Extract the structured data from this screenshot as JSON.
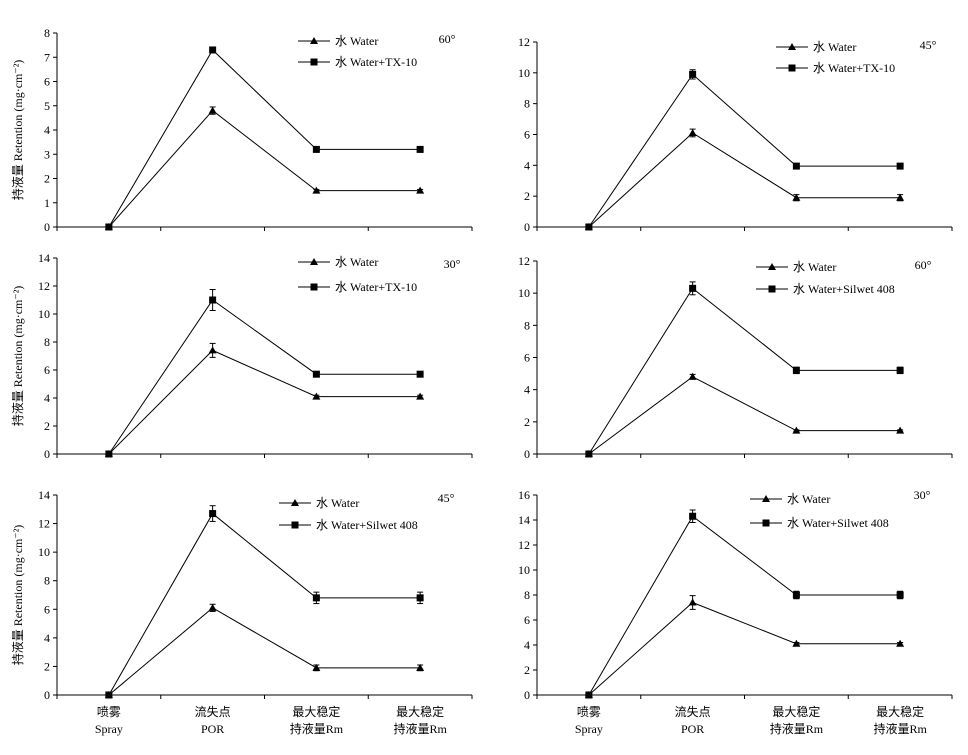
{
  "figure": {
    "ylabel": "持液量 Retention (mg·cm⁻²)",
    "categories_cn": [
      "喷雾",
      "流失点",
      "最大稳定",
      "最大稳定"
    ],
    "categories_en": [
      "Spray",
      "POR",
      "持液量Rm",
      "持液量Rm"
    ]
  },
  "chart_data": [
    {
      "type": "line",
      "angle_label": "60°",
      "ylim": [
        0,
        8
      ],
      "yticks": [
        0,
        1,
        2,
        3,
        4,
        5,
        6,
        7,
        8
      ],
      "grid": false,
      "legend_position": "top-right",
      "series": [
        {
          "name": "水 Water",
          "marker": "triangle",
          "values": [
            0,
            4.8,
            1.5,
            1.5
          ],
          "errors": [
            0,
            0.15,
            0.05,
            0.05
          ]
        },
        {
          "name": "水 Water+TX-10",
          "marker": "square",
          "values": [
            0,
            7.3,
            3.2,
            3.2
          ],
          "errors": [
            0,
            0.1,
            0.1,
            0.1
          ]
        }
      ]
    },
    {
      "type": "line",
      "angle_label": "45°",
      "ylim": [
        0,
        12
      ],
      "yticks": [
        0,
        2,
        4,
        6,
        8,
        10,
        12
      ],
      "grid": false,
      "legend_position": "top-right",
      "series": [
        {
          "name": "水 Water",
          "marker": "triangle",
          "values": [
            0,
            6.1,
            1.9,
            1.9
          ],
          "errors": [
            0,
            0.25,
            0.2,
            0.2
          ]
        },
        {
          "name": "水 Water+TX-10",
          "marker": "square",
          "values": [
            0,
            9.9,
            3.95,
            3.95
          ],
          "errors": [
            0,
            0.3,
            0.1,
            0.1
          ]
        }
      ]
    },
    {
      "type": "line",
      "angle_label": "30°",
      "ylim": [
        0,
        14
      ],
      "yticks": [
        0,
        2,
        4,
        6,
        8,
        10,
        12,
        14
      ],
      "grid": false,
      "legend_position": "top-right",
      "series": [
        {
          "name": "水 Water",
          "marker": "triangle",
          "values": [
            0,
            7.4,
            4.1,
            4.1
          ],
          "errors": [
            0,
            0.5,
            0.1,
            0.1
          ]
        },
        {
          "name": "水 Water+TX-10",
          "marker": "square",
          "values": [
            0,
            11.0,
            5.7,
            5.7
          ],
          "errors": [
            0,
            0.75,
            0.1,
            0.1
          ]
        }
      ]
    },
    {
      "type": "line",
      "angle_label": "60°",
      "ylim": [
        0,
        12
      ],
      "yticks": [
        0,
        2,
        4,
        6,
        8,
        10,
        12
      ],
      "grid": false,
      "legend_position": "top-right",
      "series": [
        {
          "name": "水 Water",
          "marker": "triangle",
          "values": [
            0,
            4.8,
            1.45,
            1.45
          ],
          "errors": [
            0,
            0.15,
            0.05,
            0.05
          ]
        },
        {
          "name": "水 Water+Silwet 408",
          "marker": "square",
          "values": [
            0,
            10.3,
            5.2,
            5.2
          ],
          "errors": [
            0,
            0.4,
            0.2,
            0.2
          ]
        }
      ]
    },
    {
      "type": "line",
      "angle_label": "45°",
      "ylim": [
        0,
        14
      ],
      "yticks": [
        0,
        2,
        4,
        6,
        8,
        10,
        12,
        14
      ],
      "grid": false,
      "legend_position": "top-right",
      "series": [
        {
          "name": "水 Water",
          "marker": "triangle",
          "values": [
            0,
            6.1,
            1.9,
            1.9
          ],
          "errors": [
            0,
            0.25,
            0.2,
            0.2
          ]
        },
        {
          "name": "水 Water+Silwet 408",
          "marker": "square",
          "values": [
            0,
            12.7,
            6.8,
            6.8
          ],
          "errors": [
            0,
            0.55,
            0.4,
            0.4
          ]
        }
      ]
    },
    {
      "type": "line",
      "angle_label": "30°",
      "ylim": [
        0,
        16
      ],
      "yticks": [
        0,
        2,
        4,
        6,
        8,
        10,
        12,
        14,
        16
      ],
      "grid": false,
      "legend_position": "top-right",
      "series": [
        {
          "name": "水 Water",
          "marker": "triangle",
          "values": [
            0,
            7.4,
            4.1,
            4.1
          ],
          "errors": [
            0,
            0.55,
            0.1,
            0.1
          ]
        },
        {
          "name": "水 Water+Silwet 408",
          "marker": "square",
          "values": [
            0,
            14.3,
            8.0,
            8.0
          ],
          "errors": [
            0,
            0.5,
            0.3,
            0.3
          ]
        }
      ]
    }
  ]
}
